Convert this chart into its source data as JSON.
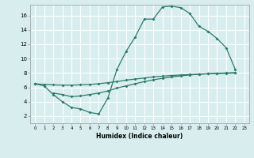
{
  "xlabel": "Humidex (Indice chaleur)",
  "bg_color": "#d8eeee",
  "line_color": "#2a7a6f",
  "grid_color": "#ffffff",
  "xlim": [
    -0.5,
    23.5
  ],
  "ylim": [
    1.0,
    17.5
  ],
  "xticks": [
    0,
    1,
    2,
    3,
    4,
    5,
    6,
    7,
    8,
    9,
    10,
    11,
    12,
    13,
    14,
    15,
    16,
    17,
    18,
    19,
    20,
    21,
    22,
    23
  ],
  "yticks": [
    2,
    4,
    6,
    8,
    10,
    12,
    14,
    16
  ],
  "curve1_x": [
    0,
    1,
    2,
    3,
    4,
    5,
    6,
    7,
    8,
    9,
    10,
    11,
    12,
    13,
    14,
    15,
    16,
    17,
    18,
    19,
    20,
    21,
    22
  ],
  "curve1_y": [
    6.5,
    6.2,
    5.0,
    4.0,
    3.2,
    3.0,
    2.5,
    2.3,
    4.5,
    8.5,
    11.0,
    13.0,
    15.5,
    15.5,
    17.2,
    17.3,
    17.1,
    16.3,
    14.5,
    13.8,
    12.8,
    11.5,
    8.5
  ],
  "curve2_x": [
    0,
    1,
    2,
    3,
    4,
    5,
    6,
    7,
    8,
    9,
    10,
    11,
    12,
    13,
    14,
    15,
    16,
    17,
    18,
    19,
    20,
    21,
    22
  ],
  "curve2_y": [
    6.5,
    6.4,
    6.35,
    6.3,
    6.3,
    6.35,
    6.4,
    6.5,
    6.65,
    6.8,
    7.0,
    7.15,
    7.3,
    7.45,
    7.55,
    7.65,
    7.72,
    7.78,
    7.83,
    7.88,
    7.92,
    7.96,
    8.0
  ],
  "curve3_x": [
    2,
    3,
    4,
    5,
    6,
    7,
    8,
    9,
    10,
    11,
    12,
    13,
    14,
    15,
    16,
    17,
    18,
    19,
    20,
    21,
    22
  ],
  "curve3_y": [
    5.2,
    5.0,
    4.7,
    4.8,
    5.0,
    5.2,
    5.5,
    5.9,
    6.2,
    6.5,
    6.8,
    7.05,
    7.25,
    7.45,
    7.6,
    7.72,
    7.82,
    7.9,
    7.96,
    8.0,
    8.05
  ]
}
